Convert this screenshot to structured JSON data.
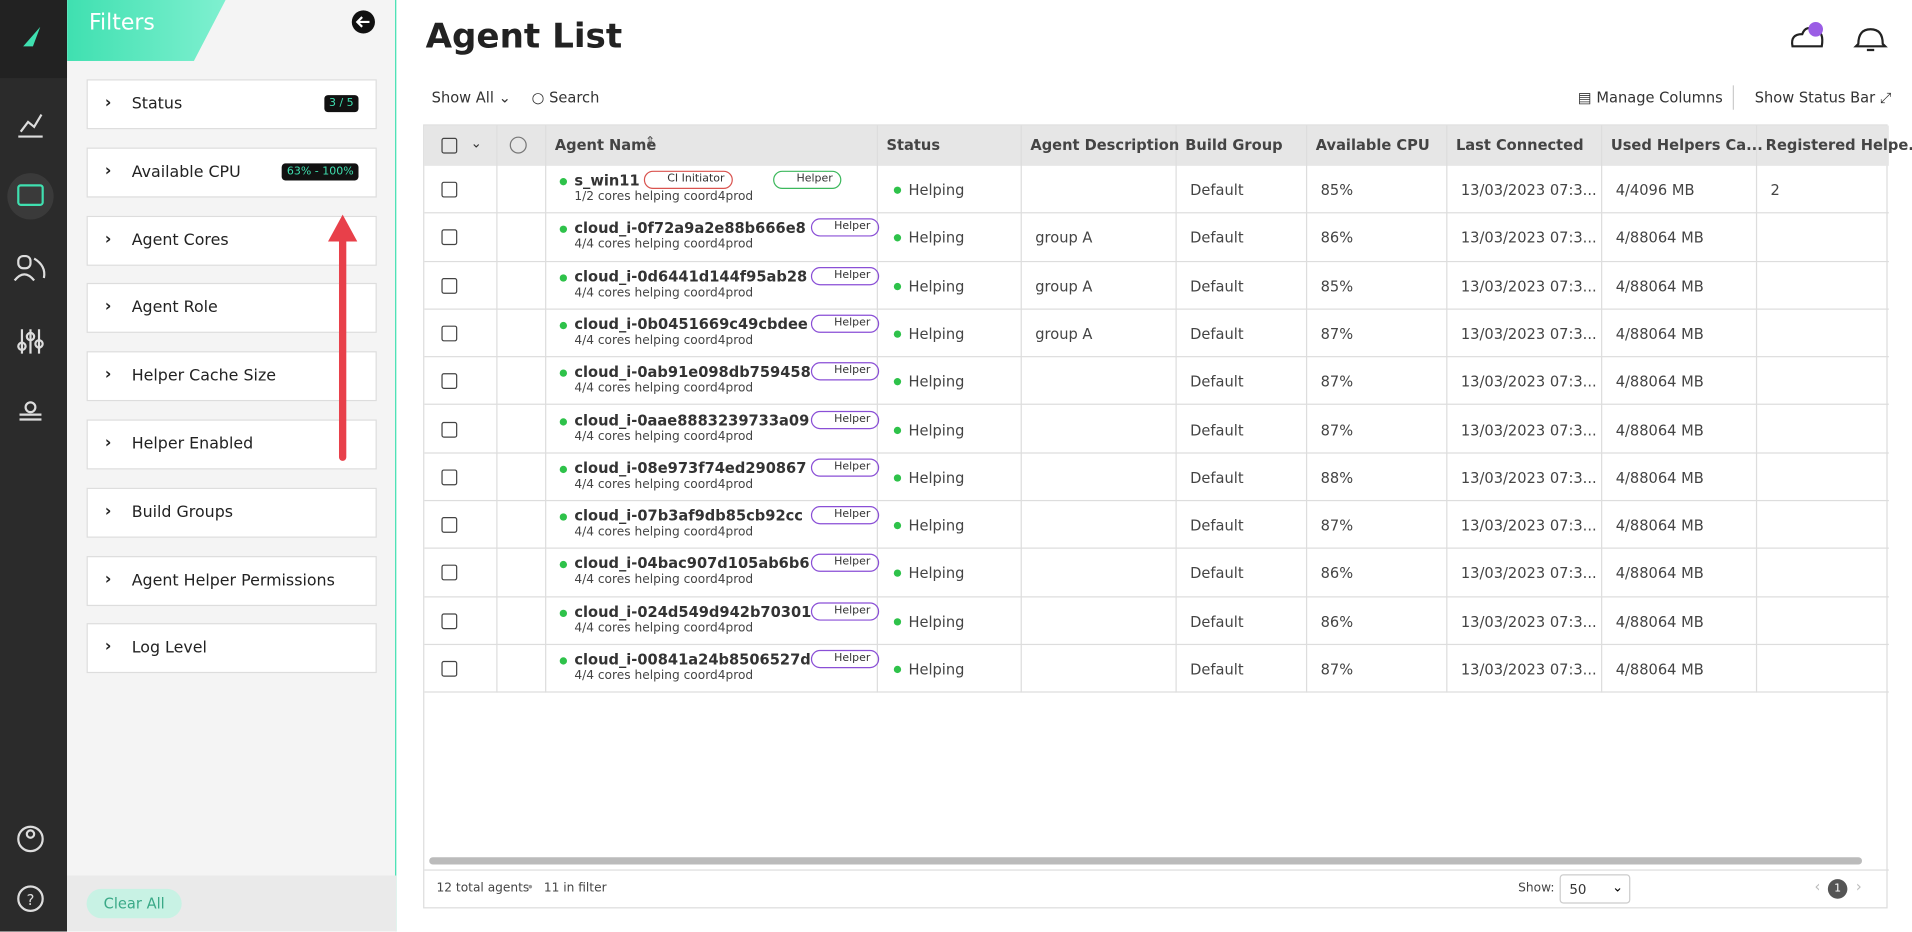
{
  "sidebar": {
    "title": "Filters",
    "clear": "Clear All",
    "filters": [
      {
        "label": "Status",
        "badge": "3 / 5"
      },
      {
        "label": "Available CPU",
        "badge": "63% - 100%"
      },
      {
        "label": "Agent Cores"
      },
      {
        "label": "Agent Role"
      },
      {
        "label": "Helper Cache Size"
      },
      {
        "label": "Helper Enabled"
      },
      {
        "label": "Build Groups"
      },
      {
        "label": "Agent Helper Permissions"
      },
      {
        "label": "Log Level"
      }
    ]
  },
  "header": {
    "title": "Agent List"
  },
  "toolbar": {
    "show_all": "Show All",
    "search": "Search",
    "manage_columns": "Manage Columns",
    "status_bar": "Show Status Bar"
  },
  "table": {
    "columns": [
      "Agent Name",
      "Status",
      "Agent Description",
      "Build Group",
      "Available CPU",
      "Last Connected",
      "Used Helpers Ca...",
      "Registered Helpe..."
    ],
    "rows": [
      {
        "name": "s_win11",
        "badges": [
          {
            "label": "CI Initiator",
            "color": "#d9534f"
          },
          {
            "label": "Helper",
            "color": "#3cb85c"
          }
        ],
        "sub": "1/2 cores helping coord4prod",
        "status": "Helping",
        "description": null,
        "group": "Default",
        "cpu": "85%",
        "last": "13/03/2023 07:3...",
        "used": "4/4096 MB",
        "registered": "2"
      },
      {
        "name": "cloud_i-0f72a9a2e88b666e8",
        "badges": [
          {
            "label": "Helper",
            "color": "#8a4fd6"
          }
        ],
        "sub": "4/4 cores helping coord4prod",
        "status": "Helping",
        "description": "group A",
        "group": "Default",
        "cpu": "86%",
        "last": "13/03/2023 07:3...",
        "used": "4/88064 MB",
        "registered": null
      },
      {
        "name": "cloud_i-0d6441d144f95ab28",
        "badges": [
          {
            "label": "Helper",
            "color": "#8a4fd6"
          }
        ],
        "sub": "4/4 cores helping coord4prod",
        "status": "Helping",
        "description": "group A",
        "group": "Default",
        "cpu": "85%",
        "last": "13/03/2023 07:3...",
        "used": "4/88064 MB",
        "registered": null
      },
      {
        "name": "cloud_i-0b0451669c49cbdee",
        "badges": [
          {
            "label": "Helper",
            "color": "#8a4fd6"
          }
        ],
        "sub": "4/4 cores helping coord4prod",
        "status": "Helping",
        "description": "group A",
        "group": "Default",
        "cpu": "87%",
        "last": "13/03/2023 07:3...",
        "used": "4/88064 MB",
        "registered": null
      },
      {
        "name": "cloud_i-0ab91e098db759458",
        "badges": [
          {
            "label": "Helper",
            "color": "#8a4fd6"
          }
        ],
        "sub": "4/4 cores helping coord4prod",
        "status": "Helping",
        "description": null,
        "group": "Default",
        "cpu": "87%",
        "last": "13/03/2023 07:3...",
        "used": "4/88064 MB",
        "registered": null
      },
      {
        "name": "cloud_i-0aae8883239733a09",
        "badges": [
          {
            "label": "Helper",
            "color": "#8a4fd6"
          }
        ],
        "sub": "4/4 cores helping coord4prod",
        "status": "Helping",
        "description": null,
        "group": "Default",
        "cpu": "87%",
        "last": "13/03/2023 07:3...",
        "used": "4/88064 MB",
        "registered": null
      },
      {
        "name": "cloud_i-08e973f74ed290867",
        "badges": [
          {
            "label": "Helper",
            "color": "#8a4fd6"
          }
        ],
        "sub": "4/4 cores helping coord4prod",
        "status": "Helping",
        "description": null,
        "group": "Default",
        "cpu": "88%",
        "last": "13/03/2023 07:3...",
        "used": "4/88064 MB",
        "registered": null
      },
      {
        "name": "cloud_i-07b3af9db85cb92cc",
        "badges": [
          {
            "label": "Helper",
            "color": "#8a4fd6"
          }
        ],
        "sub": "4/4 cores helping coord4prod",
        "status": "Helping",
        "description": null,
        "group": "Default",
        "cpu": "87%",
        "last": "13/03/2023 07:3...",
        "used": "4/88064 MB",
        "registered": null
      },
      {
        "name": "cloud_i-04bac907d105ab6b6",
        "badges": [
          {
            "label": "Helper",
            "color": "#8a4fd6"
          }
        ],
        "sub": "4/4 cores helping coord4prod",
        "status": "Helping",
        "description": null,
        "group": "Default",
        "cpu": "86%",
        "last": "13/03/2023 07:3...",
        "used": "4/88064 MB",
        "registered": null
      },
      {
        "name": "cloud_i-024d549d942b70301",
        "badges": [
          {
            "label": "Helper",
            "color": "#8a4fd6"
          }
        ],
        "sub": "4/4 cores helping coord4prod",
        "status": "Helping",
        "description": null,
        "group": "Default",
        "cpu": "86%",
        "last": "13/03/2023 07:3...",
        "used": "4/88064 MB",
        "registered": null
      },
      {
        "name": "cloud_i-00841a24b8506527d",
        "badges": [
          {
            "label": "Helper",
            "color": "#8a4fd6"
          }
        ],
        "sub": "4/4 cores helping coord4prod",
        "status": "Helping",
        "description": null,
        "group": "Default",
        "cpu": "87%",
        "last": "13/03/2023 07:3...",
        "used": "4/88064 MB",
        "registered": null
      }
    ]
  },
  "footer": {
    "total": "12 total agents",
    "in_filter": "11 in filter",
    "show_label": "Show:",
    "page_size": "50",
    "page": "1"
  }
}
